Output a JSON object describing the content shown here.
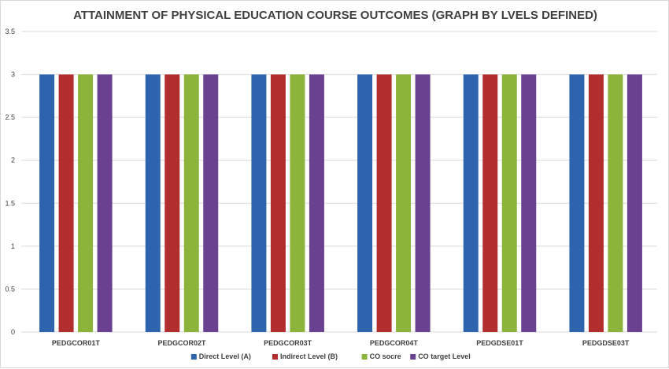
{
  "chart_data": {
    "type": "bar",
    "title": "ATTAINMENT OF PHYSICAL EDUCATION COURSE OUTCOMES (GRAPH BY LVELS DEFINED)",
    "categories": [
      "PEDGCOR01T",
      "PEDGCOR02T",
      "PEDGCOR03T",
      "PEDGCOR04T",
      "PEDGDSE01T",
      "PEDGDSE03T"
    ],
    "series": [
      {
        "name": "Direct Level (A)",
        "color": "#2e64ae",
        "values": [
          3,
          3,
          3,
          3,
          3,
          3
        ]
      },
      {
        "name": "Indirect Level (B)",
        "color": "#b22d2d",
        "values": [
          3,
          3,
          3,
          3,
          3,
          3
        ]
      },
      {
        "name": "CO socre",
        "color": "#8cb33a",
        "values": [
          3,
          3,
          3,
          3,
          3,
          3
        ]
      },
      {
        "name": "CO target Level",
        "color": "#6a4191",
        "values": [
          3,
          3,
          3,
          3,
          3,
          3
        ]
      }
    ],
    "ylim": [
      0,
      3.5
    ],
    "yticks": [
      0,
      0.5,
      1,
      1.5,
      2,
      2.5,
      3,
      3.5
    ],
    "ytick_labels": [
      "0",
      "0.5",
      "1",
      "1.5",
      "2",
      "2.5",
      "3",
      "3.5"
    ],
    "grid": true,
    "legend_position": "bottom"
  }
}
